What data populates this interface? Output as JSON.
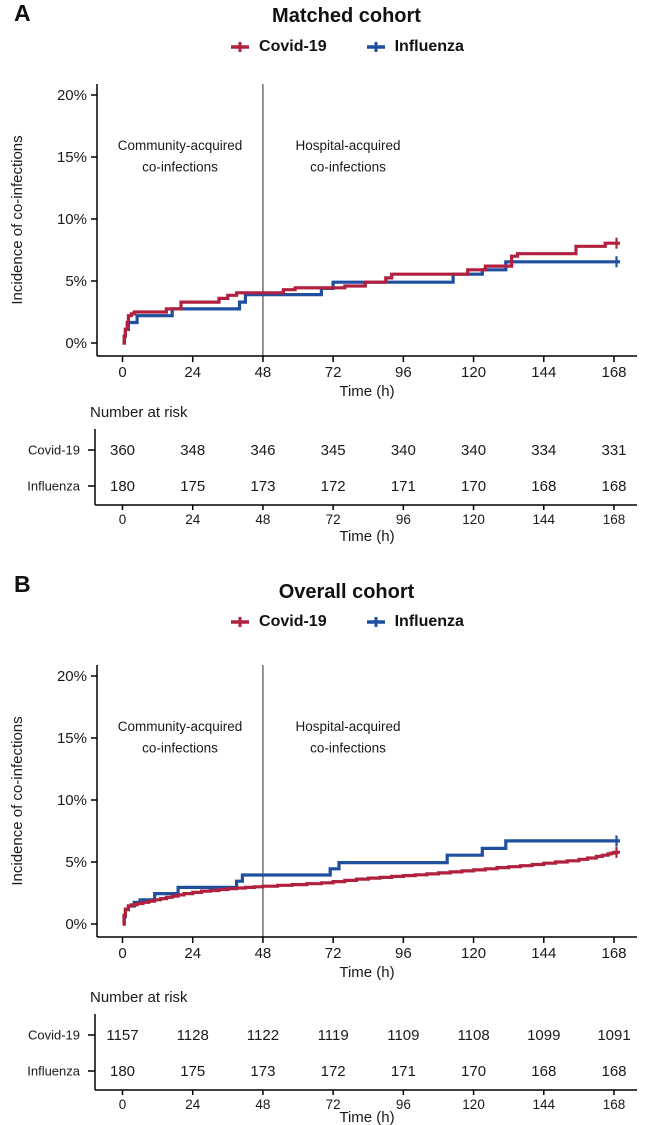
{
  "figure": {
    "legend": [
      {
        "label": "Covid-19",
        "color": "#B2203F"
      },
      {
        "label": "Influenza",
        "color": "#1F4F9F"
      }
    ],
    "colors": {
      "covid": "#B2203F",
      "influenza": "#1F4F9F",
      "axis": "#000000",
      "divider": "#4d4d4d",
      "annotation": "#333333"
    }
  },
  "chart_data": [
    {
      "panel_letter": "A",
      "title": "Matched cohort",
      "type": "line",
      "variant": "cumulative-incidence-step",
      "xlabel": "Time (h)",
      "ylabel": "Incidence of co-infections",
      "x_ticks": [
        0,
        24,
        48,
        72,
        96,
        120,
        144,
        168
      ],
      "y_tick_values": [
        0,
        5,
        10,
        15,
        20
      ],
      "y_tick_labels": [
        "0%",
        "5%",
        "10%",
        "15%",
        "20%"
      ],
      "xlim": [
        0,
        168
      ],
      "ylim": [
        0,
        21
      ],
      "grid": false,
      "divider_x": 48,
      "annotations": [
        {
          "lines": [
            "Community-acquired",
            "co-infections"
          ]
        },
        {
          "lines": [
            "Hospital-acquired",
            "co-infections"
          ]
        }
      ],
      "series": [
        {
          "name": "Influenza",
          "color": "#1F4F9F",
          "censor_at_end": true,
          "points": [
            [
              0,
              0
            ],
            [
              0.6,
              0.55
            ],
            [
              1,
              1.1
            ],
            [
              2,
              1.65
            ],
            [
              5,
              2.2
            ],
            [
              17,
              2.75
            ],
            [
              40,
              3.3
            ],
            [
              42,
              3.9
            ],
            [
              68,
              4.4
            ],
            [
              72,
              4.9
            ],
            [
              113,
              5.55
            ],
            [
              123,
              5.9
            ],
            [
              131,
              6.55
            ],
            [
              168,
              6.55
            ]
          ]
        },
        {
          "name": "Covid-19",
          "color": "#B2203F",
          "censor_at_end": true,
          "points": [
            [
              0,
              0
            ],
            [
              0.6,
              0.55
            ],
            [
              1,
              1.1
            ],
            [
              1.6,
              1.65
            ],
            [
              2,
              2.2
            ],
            [
              3,
              2.35
            ],
            [
              4,
              2.5
            ],
            [
              15,
              2.75
            ],
            [
              20,
              3.3
            ],
            [
              33,
              3.6
            ],
            [
              36,
              3.85
            ],
            [
              39,
              4.05
            ],
            [
              55,
              4.3
            ],
            [
              59,
              4.45
            ],
            [
              76,
              4.6
            ],
            [
              83,
              4.9
            ],
            [
              90,
              5.25
            ],
            [
              92,
              5.55
            ],
            [
              118,
              5.9
            ],
            [
              124,
              6.2
            ],
            [
              133,
              7.0
            ],
            [
              135,
              7.2
            ],
            [
              155,
              7.8
            ],
            [
              165,
              8.05
            ],
            [
              168,
              8.05
            ]
          ]
        }
      ],
      "risk_table": {
        "title": "Number at risk",
        "xlabel": "Time (h)",
        "times": [
          0,
          24,
          48,
          72,
          96,
          120,
          144,
          168
        ],
        "rows": [
          {
            "label": "Covid-19",
            "color": "#B2203F",
            "values": [
              360,
              348,
              346,
              345,
              340,
              340,
              334,
              331
            ]
          },
          {
            "label": "Influenza",
            "color": "#1F4F9F",
            "values": [
              180,
              175,
              173,
              172,
              171,
              170,
              168,
              168
            ]
          }
        ]
      }
    },
    {
      "panel_letter": "B",
      "title": "Overall cohort",
      "type": "line",
      "variant": "cumulative-incidence-step",
      "xlabel": "Time (h)",
      "ylabel": "Incidence of co-infections",
      "x_ticks": [
        0,
        24,
        48,
        72,
        96,
        120,
        144,
        168
      ],
      "y_tick_values": [
        0,
        5,
        10,
        15,
        20
      ],
      "y_tick_labels": [
        "0%",
        "5%",
        "10%",
        "15%",
        "20%"
      ],
      "xlim": [
        0,
        168
      ],
      "ylim": [
        0,
        21
      ],
      "grid": false,
      "divider_x": 48,
      "annotations": [
        {
          "lines": [
            "Community-acquired",
            "co-infections"
          ]
        },
        {
          "lines": [
            "Hospital-acquired",
            "co-infections"
          ]
        }
      ],
      "series": [
        {
          "name": "Influenza",
          "color": "#1F4F9F",
          "censor_at_end": true,
          "points": [
            [
              0,
              0
            ],
            [
              0.6,
              0.6
            ],
            [
              1,
              1.15
            ],
            [
              2,
              1.45
            ],
            [
              4,
              1.75
            ],
            [
              6,
              1.95
            ],
            [
              11,
              2.45
            ],
            [
              19,
              2.95
            ],
            [
              39,
              3.45
            ],
            [
              41,
              3.95
            ],
            [
              71,
              4.45
            ],
            [
              74,
              4.95
            ],
            [
              111,
              5.55
            ],
            [
              123,
              6.1
            ],
            [
              131,
              6.7
            ],
            [
              168,
              6.7
            ]
          ]
        },
        {
          "name": "Covid-19",
          "color": "#B2203F",
          "censor_at_end": true,
          "points": [
            [
              0,
              0
            ],
            [
              0.5,
              0.7
            ],
            [
              1,
              1.2
            ],
            [
              2,
              1.45
            ],
            [
              3,
              1.55
            ],
            [
              5,
              1.65
            ],
            [
              7,
              1.75
            ],
            [
              9,
              1.85
            ],
            [
              11,
              1.95
            ],
            [
              13,
              2.05
            ],
            [
              15,
              2.15
            ],
            [
              17,
              2.25
            ],
            [
              19,
              2.35
            ],
            [
              21,
              2.45
            ],
            [
              24,
              2.55
            ],
            [
              27,
              2.65
            ],
            [
              30,
              2.7
            ],
            [
              33,
              2.78
            ],
            [
              36,
              2.85
            ],
            [
              39,
              2.9
            ],
            [
              42,
              2.95
            ],
            [
              45,
              3.0
            ],
            [
              48,
              3.05
            ],
            [
              53,
              3.12
            ],
            [
              58,
              3.18
            ],
            [
              63,
              3.25
            ],
            [
              68,
              3.32
            ],
            [
              72,
              3.42
            ],
            [
              76,
              3.52
            ],
            [
              80,
              3.62
            ],
            [
              84,
              3.7
            ],
            [
              88,
              3.76
            ],
            [
              92,
              3.84
            ],
            [
              96,
              3.9
            ],
            [
              100,
              3.97
            ],
            [
              104,
              4.04
            ],
            [
              108,
              4.12
            ],
            [
              112,
              4.2
            ],
            [
              116,
              4.28
            ],
            [
              120,
              4.36
            ],
            [
              124,
              4.45
            ],
            [
              128,
              4.55
            ],
            [
              132,
              4.62
            ],
            [
              136,
              4.7
            ],
            [
              140,
              4.8
            ],
            [
              144,
              4.9
            ],
            [
              148,
              5.0
            ],
            [
              152,
              5.1
            ],
            [
              156,
              5.22
            ],
            [
              159,
              5.32
            ],
            [
              162,
              5.45
            ],
            [
              164,
              5.55
            ],
            [
              166,
              5.65
            ],
            [
              167,
              5.72
            ],
            [
              168,
              5.78
            ]
          ]
        }
      ],
      "risk_table": {
        "title": "Number at risk",
        "xlabel": "Time (h)",
        "times": [
          0,
          24,
          48,
          72,
          96,
          120,
          144,
          168
        ],
        "rows": [
          {
            "label": "Covid-19",
            "color": "#B2203F",
            "values": [
              1157,
              1128,
              1122,
              1119,
              1109,
              1108,
              1099,
              1091
            ]
          },
          {
            "label": "Influenza",
            "color": "#1F4F9F",
            "values": [
              180,
              175,
              173,
              172,
              171,
              170,
              168,
              168
            ]
          }
        ]
      }
    }
  ]
}
